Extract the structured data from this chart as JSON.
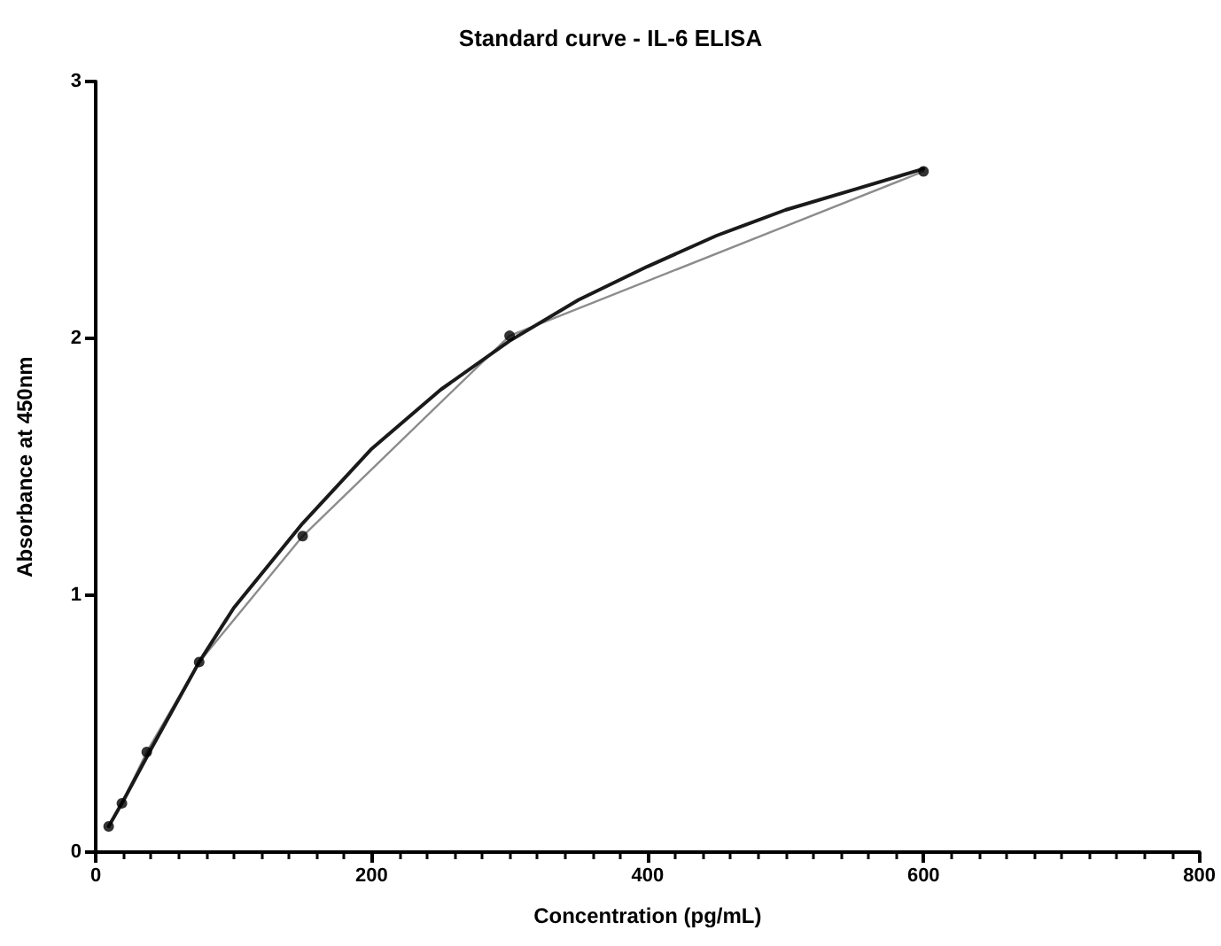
{
  "chart_data": {
    "type": "line",
    "title": "Standard curve - IL-6 ELISA",
    "xlabel": "Concentration (pg/mL)",
    "ylabel": "Absorbance at 450nm",
    "xlim": [
      0,
      800
    ],
    "xticks": [
      0,
      200,
      400,
      600,
      800
    ],
    "ylim": [
      0,
      3
    ],
    "yticks": [
      0,
      1,
      2,
      3
    ],
    "grid": false,
    "line_style": "solid",
    "series": [
      {
        "marker": "none",
        "color": "#8c8c8c",
        "x": [
          9.4,
          19,
          37,
          75,
          150,
          300,
          600
        ],
        "values": [
          0.1,
          0.19,
          0.39,
          0.74,
          1.23,
          2.01,
          2.65
        ]
      },
      {
        "type": "scatter",
        "marker": "circle",
        "color": "#000000",
        "x": [
          9.4,
          19,
          37,
          75,
          150,
          300,
          600
        ],
        "values": [
          0.1,
          0.19,
          0.39,
          0.74,
          1.23,
          2.01,
          2.65
        ]
      },
      {
        "marker": "none",
        "color": "#1a1a1a",
        "x": [
          9.4,
          20,
          40,
          75,
          100,
          150,
          200,
          250,
          300,
          350,
          400,
          450,
          500,
          550,
          600
        ],
        "values": [
          0.1,
          0.2,
          0.4,
          0.74,
          0.95,
          1.28,
          1.57,
          1.8,
          1.99,
          2.15,
          2.28,
          2.4,
          2.5,
          2.58,
          2.66
        ]
      }
    ]
  }
}
